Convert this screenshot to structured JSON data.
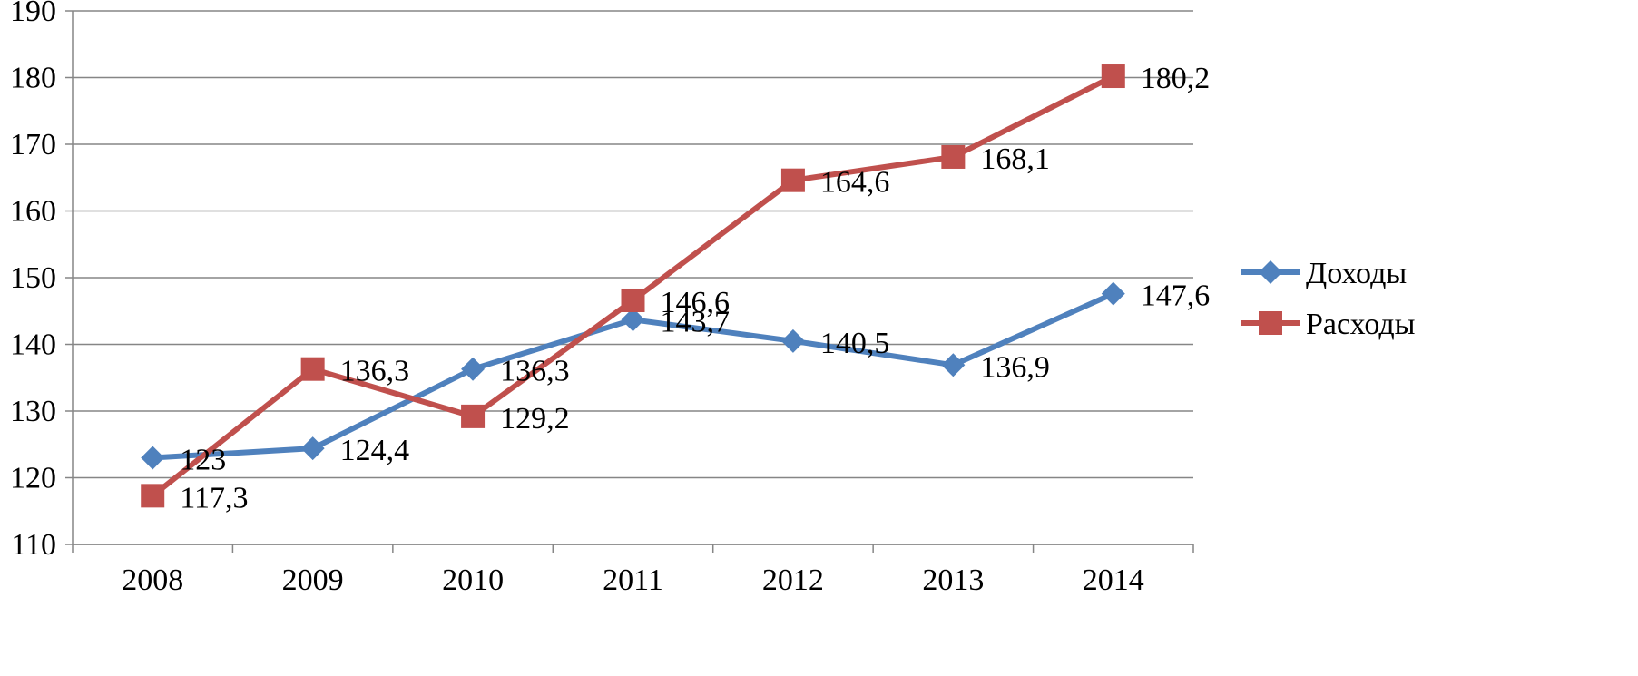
{
  "chart_data": {
    "type": "line",
    "categories": [
      "2008",
      "2009",
      "2010",
      "2011",
      "2012",
      "2013",
      "2014"
    ],
    "series": [
      {
        "name": "Доходы",
        "color": "#4F81BD",
        "marker": "diamond",
        "values": [
          123,
          124.4,
          136.3,
          143.7,
          140.5,
          136.9,
          147.6
        ],
        "labels": [
          "123",
          "124,4",
          "136,3",
          "143,7",
          "140,5",
          "136,9",
          "147,6"
        ]
      },
      {
        "name": "Расходы",
        "color": "#C0504D",
        "marker": "square",
        "values": [
          117.3,
          136.3,
          129.2,
          146.6,
          164.6,
          168.1,
          180.2
        ],
        "labels": [
          "117,3",
          "136,3",
          "129,2",
          "146,6",
          "164,6",
          "168,1",
          "180,2"
        ]
      }
    ],
    "ylim": [
      110,
      190
    ],
    "yticks": [
      "110",
      "120",
      "130",
      "140",
      "150",
      "160",
      "170",
      "180",
      "190"
    ],
    "grid": true,
    "legend_position": "right"
  }
}
